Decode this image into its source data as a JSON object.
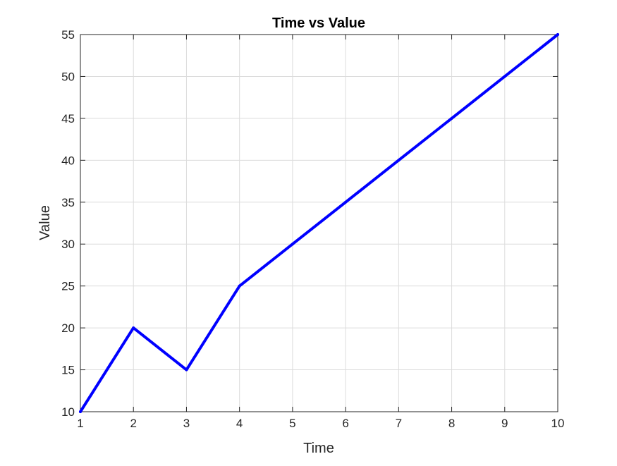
{
  "chart_data": {
    "type": "line",
    "title": "Time vs Value",
    "xlabel": "Time",
    "ylabel": "Value",
    "x": [
      1,
      2,
      3,
      4,
      5,
      6,
      7,
      8,
      9,
      10
    ],
    "series": [
      {
        "values": [
          10,
          20,
          15,
          25,
          30,
          35,
          40,
          45,
          50,
          55
        ],
        "color": "#0000ff"
      }
    ],
    "xlim": [
      1,
      10
    ],
    "ylim": [
      10,
      55
    ],
    "xticks": [
      1,
      2,
      3,
      4,
      5,
      6,
      7,
      8,
      9,
      10
    ],
    "yticks": [
      10,
      15,
      20,
      25,
      30,
      35,
      40,
      45,
      50,
      55
    ],
    "grid": true,
    "legend": "none"
  }
}
